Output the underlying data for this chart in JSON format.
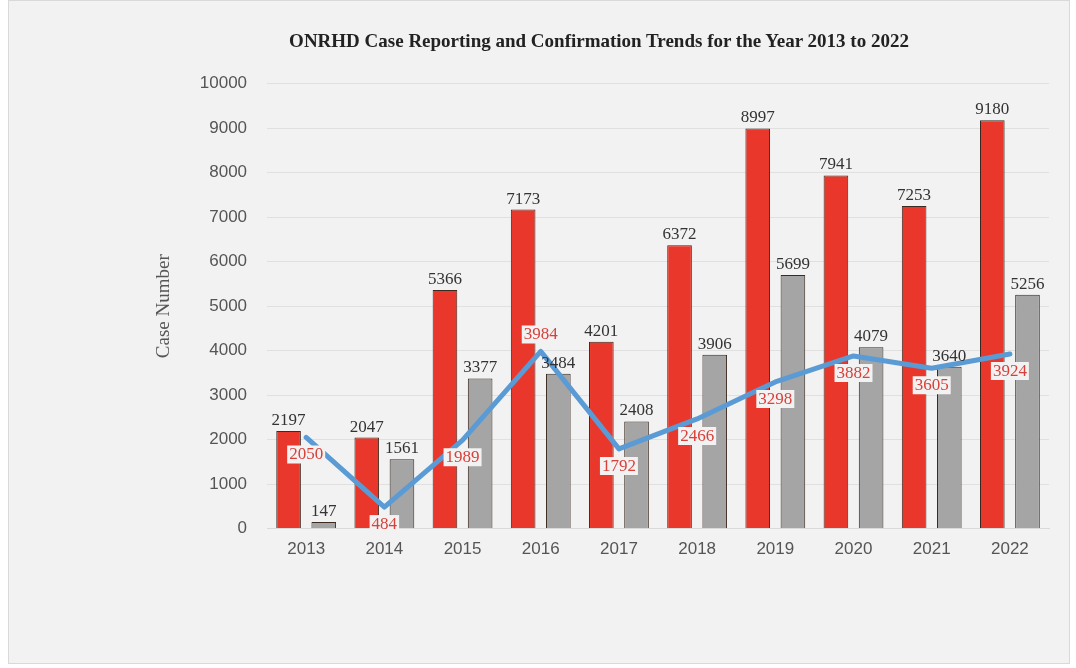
{
  "chart_data": {
    "type": "bar",
    "title": "ONRHD Case Reporting and Confirmation Trends for the Year 2013 to 2022",
    "ylabel": "Case Number",
    "categories": [
      "2013",
      "2014",
      "2015",
      "2016",
      "2017",
      "2018",
      "2019",
      "2020",
      "2021",
      "2022"
    ],
    "series": [
      {
        "color": "#e9382b",
        "values": [
          2197,
          2047,
          5366,
          7173,
          4201,
          6372,
          8997,
          7941,
          7253,
          9180
        ]
      },
      {
        "color": "#a5a5a5",
        "values": [
          147,
          1561,
          3377,
          3484,
          2408,
          3906,
          5699,
          4079,
          3640,
          5256
        ]
      },
      {
        "type": "line",
        "color": "#5b9bd5",
        "values": [
          2050,
          484,
          1989,
          3984,
          1792,
          2466,
          3298,
          3882,
          3605,
          3924
        ]
      }
    ],
    "ylim": [
      0,
      10000
    ],
    "yticks": [
      0,
      1000,
      2000,
      3000,
      4000,
      5000,
      6000,
      7000,
      8000,
      9000,
      10000
    ],
    "grid": "y",
    "data_labels": true,
    "legend": false
  }
}
